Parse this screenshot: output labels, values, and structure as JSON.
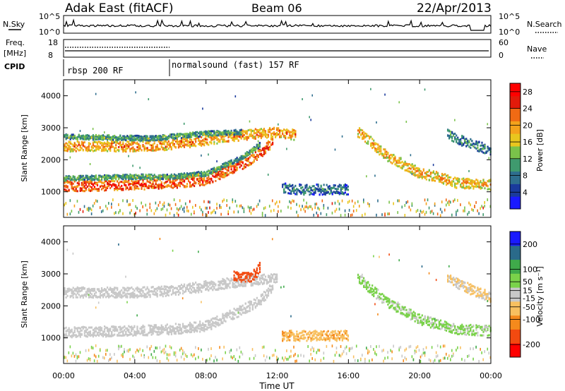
{
  "header": {
    "radar": "Adak East (fitACF)",
    "beam": "Beam 06",
    "date": "22/Apr/2013"
  },
  "left_labels": {
    "nsky": "N.Sky",
    "freq": "Freq.",
    "freq_unit": "[MHz]",
    "cpid": "CPID"
  },
  "right_labels": {
    "nsearch": "N.Search",
    "nave": "Nave"
  },
  "noise_axis": {
    "left_top": "10^5",
    "left_bottom": "10^0",
    "right_top": "10^5",
    "right_bottom": "10^0"
  },
  "freq_axis": {
    "left_top": "18",
    "left_bottom": "8",
    "right_top": "60",
    "right_bottom": "0"
  },
  "cpid_blocks": [
    {
      "label": "rbsp 200 RF",
      "start_hour": 0
    },
    {
      "label": "normalsound (fast) 157 RF",
      "start_hour": 6
    }
  ],
  "colors": {
    "power_scale": [
      "#1a1aff",
      "#1a3a9c",
      "#2e6e8e",
      "#3f9a6e",
      "#7ac24a",
      "#e8c61e",
      "#f4a21c",
      "#f06a14",
      "#e21a0a",
      "#ff0000"
    ],
    "velocity_scale": [
      "#ff0000",
      "#f24a10",
      "#f58a1c",
      "#f8c060",
      "#c8c8c8",
      "#7ad24a",
      "#3faa4a",
      "#2a6a8a",
      "#1a1aff"
    ],
    "ground_scatter": "#c8c8c8"
  },
  "chart_data": [
    {
      "type": "heatmap",
      "title": "",
      "ylabel": "Slant Range [km]",
      "xlabel": "",
      "ylim": [
        200,
        4500
      ],
      "yticks": [
        "1000",
        "2000",
        "3000",
        "4000"
      ],
      "xlim_hours": [
        0,
        24
      ],
      "colorbar": {
        "label": "Power [dB]",
        "ticks": [
          "4",
          "8",
          "12",
          "16",
          "20",
          "24",
          "28"
        ],
        "range": [
          0,
          30
        ]
      },
      "bands": [
        {
          "name": "lower",
          "points": [
            [
              0,
              1200
            ],
            [
              4,
              1250
            ],
            [
              6,
              1300
            ],
            [
              8,
              1400
            ],
            [
              10,
              1900
            ],
            [
              11,
              2200
            ],
            [
              11.7,
              2600
            ]
          ],
          "value": 26
        },
        {
          "name": "lower-edge",
          "points": [
            [
              0,
              1450
            ],
            [
              4,
              1500
            ],
            [
              6,
              1500
            ],
            [
              8,
              1600
            ],
            [
              10,
              2100
            ],
            [
              11,
              2500
            ]
          ],
          "value": 12
        },
        {
          "name": "upper",
          "points": [
            [
              0,
              2450
            ],
            [
              4,
              2450
            ],
            [
              6,
              2500
            ],
            [
              8,
              2650
            ],
            [
              10,
              2800
            ],
            [
              12,
              2900
            ],
            [
              13,
              2800
            ]
          ],
          "value": 22
        },
        {
          "name": "upper-top",
          "points": [
            [
              0,
              2750
            ],
            [
              5,
              2700
            ],
            [
              8,
              2850
            ],
            [
              10,
              2900
            ]
          ],
          "value": 12
        },
        {
          "name": "midday",
          "points": [
            [
              12.2,
              1150
            ],
            [
              13,
              1100
            ],
            [
              14,
              1100
            ],
            [
              15,
              1100
            ],
            [
              16,
              1100
            ]
          ],
          "value": 8
        },
        {
          "name": "evening",
          "points": [
            [
              16.5,
              2900
            ],
            [
              17,
              2700
            ],
            [
              18,
              2200
            ],
            [
              19,
              1900
            ],
            [
              20,
              1600
            ],
            [
              21,
              1500
            ],
            [
              22,
              1300
            ],
            [
              24,
              1250
            ]
          ],
          "value": 20
        },
        {
          "name": "late",
          "points": [
            [
              21.5,
              2900
            ],
            [
              22,
              2700
            ],
            [
              23,
              2500
            ],
            [
              24,
              2300
            ]
          ],
          "value": 10
        }
      ]
    },
    {
      "type": "heatmap",
      "title": "",
      "ylabel": "Slant Range [km]",
      "xlabel": "Time UT",
      "ylim": [
        200,
        4500
      ],
      "yticks": [
        "1000",
        "2000",
        "3000",
        "4000"
      ],
      "xticks": [
        "00:00",
        "04:00",
        "08:00",
        "12:00",
        "16:00",
        "20:00",
        "00:00"
      ],
      "xlim_hours": [
        0,
        24
      ],
      "colorbar": {
        "label": "Velocity [m s⁻¹]",
        "ticks": [
          "-200",
          "-100",
          "-50",
          "-15",
          "15",
          "50",
          "100",
          "200"
        ],
        "range": [
          -250,
          250
        ]
      },
      "bands": [
        {
          "name": "lower",
          "points": [
            [
              0,
              1200
            ],
            [
              4,
              1250
            ],
            [
              6,
              1300
            ],
            [
              8,
              1400
            ],
            [
              10,
              1900
            ],
            [
              11,
              2200
            ],
            [
              11.7,
              2600
            ]
          ],
          "value": 0
        },
        {
          "name": "upper",
          "points": [
            [
              0,
              2450
            ],
            [
              4,
              2450
            ],
            [
              6,
              2500
            ],
            [
              8,
              2650
            ],
            [
              10,
              2800
            ],
            [
              12,
              2900
            ]
          ],
          "value": 0
        },
        {
          "name": "surge",
          "points": [
            [
              9.5,
              3000
            ],
            [
              10.3,
              2900
            ],
            [
              10.8,
              3050
            ],
            [
              11,
              3250
            ]
          ],
          "value": -180
        },
        {
          "name": "midday",
          "points": [
            [
              12.2,
              1100
            ],
            [
              14,
              1100
            ],
            [
              16,
              1100
            ]
          ],
          "value": -40
        },
        {
          "name": "evening",
          "points": [
            [
              16.5,
              2900
            ],
            [
              18,
              2200
            ],
            [
              20,
              1600
            ],
            [
              22,
              1300
            ],
            [
              24,
              1250
            ]
          ],
          "value": 20
        },
        {
          "name": "late",
          "points": [
            [
              21.5,
              2900
            ],
            [
              23,
              2500
            ],
            [
              24,
              2300
            ]
          ],
          "value": -15
        }
      ]
    }
  ]
}
